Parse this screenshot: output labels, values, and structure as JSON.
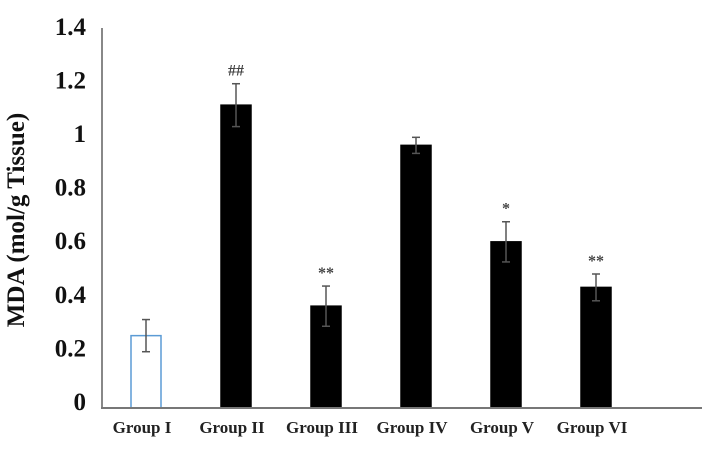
{
  "chart_data": {
    "type": "bar",
    "title": "",
    "xlabel": "",
    "ylabel": "MDA (mol/g Tissue)",
    "ylim": [
      0,
      1.4
    ],
    "yticks": [
      "0",
      "0.2",
      "0.4",
      "0.6",
      "0.8",
      "1",
      "1.2",
      "1.4"
    ],
    "grid": false,
    "categories": [
      "Group I",
      "Group II",
      "Group III",
      "Group IV",
      "Group V",
      "Group VI"
    ],
    "values": [
      0.27,
      1.13,
      0.38,
      0.98,
      0.62,
      0.45
    ],
    "errors": [
      0.06,
      0.08,
      0.075,
      0.03,
      0.075,
      0.05
    ],
    "annotations": [
      "",
      "##",
      "**",
      "",
      "*",
      "**"
    ],
    "bar_colors": [
      "#ffffff",
      "#000000",
      "#000000",
      "#000000",
      "#000000",
      "#000000"
    ],
    "bar_edge_colors": [
      "#5b9bd5",
      "#000000",
      "#000000",
      "#000000",
      "#000000",
      "#000000"
    ],
    "error_bar_color": "#555555"
  }
}
